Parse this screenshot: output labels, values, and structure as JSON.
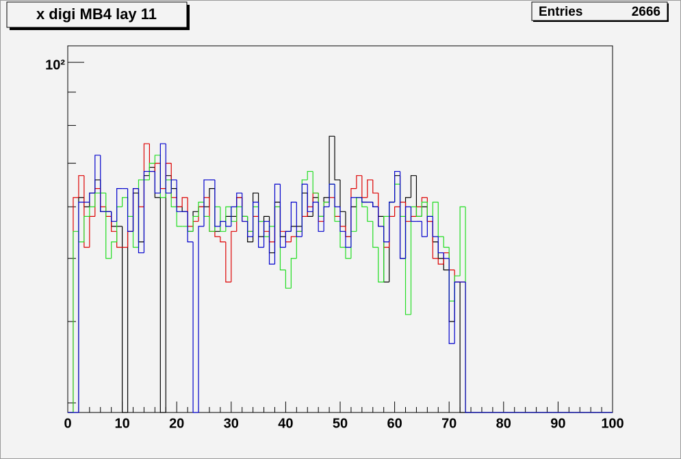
{
  "chart_data": {
    "type": "histogram",
    "title": "x digi MB4 lay 11",
    "stats": {
      "label": "Entries",
      "value": "2666"
    },
    "bins": [
      0,
      1,
      2,
      3,
      4,
      5,
      6,
      7,
      8,
      9,
      10,
      11,
      12,
      13,
      14,
      15,
      16,
      17,
      18,
      19,
      20,
      21,
      22,
      23,
      24,
      25,
      26,
      27,
      28,
      29,
      30,
      31,
      32,
      33,
      34,
      35,
      36,
      37,
      38,
      39,
      40,
      41,
      42,
      43,
      44,
      45,
      46,
      47,
      48,
      49,
      50,
      51,
      52,
      53,
      54,
      55,
      56,
      57,
      58,
      59,
      60,
      61,
      62,
      63,
      64,
      65,
      66,
      67,
      68,
      69,
      70,
      71,
      72,
      73,
      74,
      75,
      76,
      77,
      78,
      79,
      80,
      81,
      82,
      83,
      84,
      85,
      86,
      87,
      88,
      89,
      90,
      91,
      92,
      93,
      94,
      95,
      96,
      97,
      98,
      99,
      100
    ],
    "series": [
      {
        "color": "#000000",
        "values": [
          0,
          0,
          62,
          60,
          63,
          66,
          59,
          59,
          56,
          56,
          0,
          55,
          63,
          53,
          67,
          69,
          62,
          0,
          67,
          64,
          60,
          59,
          55,
          59,
          60,
          60,
          64,
          55,
          57,
          58,
          58,
          62,
          58,
          53,
          63,
          54,
          58,
          51,
          61,
          54,
          55,
          56,
          56,
          63,
          58,
          62,
          58,
          62,
          77,
          66,
          59,
          54,
          60,
          62,
          61,
          61,
          60,
          58,
          46,
          61,
          67,
          50,
          62,
          67,
          58,
          60,
          57,
          53,
          50,
          48,
          40,
          46,
          0,
          0,
          0,
          0,
          0,
          0,
          0,
          0,
          0,
          0,
          0,
          0,
          0,
          0,
          0,
          0,
          0,
          0,
          0,
          0,
          0,
          0,
          0,
          0,
          0,
          0,
          0,
          0
        ]
      },
      {
        "color": "#dd0000",
        "values": [
          0,
          62,
          67,
          52,
          58,
          64,
          60,
          58,
          55,
          52,
          52,
          55,
          64,
          60,
          75,
          68,
          70,
          64,
          70,
          62,
          60,
          62,
          56,
          57,
          60,
          62,
          55,
          54,
          53,
          46,
          55,
          62,
          57,
          55,
          58,
          57,
          55,
          53,
          60,
          55,
          53,
          54,
          55,
          58,
          60,
          63,
          57,
          61,
          62,
          58,
          56,
          54,
          64,
          67,
          62,
          66,
          63,
          56,
          52,
          58,
          60,
          61,
          57,
          58,
          60,
          62,
          57,
          50,
          49,
          51,
          48,
          46,
          46,
          0,
          0,
          0,
          0,
          0,
          0,
          0,
          0,
          0,
          0,
          0,
          0,
          0,
          0,
          0,
          0,
          0,
          0,
          0,
          0,
          0,
          0,
          0,
          0,
          0,
          0,
          0
        ]
      },
      {
        "color": "#22dd22",
        "values": [
          0,
          55,
          53,
          58,
          60,
          63,
          63,
          50,
          53,
          60,
          62,
          58,
          52,
          66,
          66,
          70,
          72,
          62,
          66,
          60,
          56,
          56,
          55,
          58,
          61,
          58,
          55,
          60,
          55,
          60,
          57,
          60,
          58,
          55,
          60,
          57,
          54,
          56,
          60,
          48,
          45,
          50,
          55,
          66,
          68,
          63,
          58,
          61,
          65,
          57,
          52,
          50,
          55,
          62,
          60,
          57,
          52,
          46,
          58,
          61,
          65,
          58,
          41,
          60,
          58,
          61,
          58,
          61,
          54,
          52,
          43,
          47,
          60,
          0,
          0,
          0,
          0,
          0,
          0,
          0,
          0,
          0,
          0,
          0,
          0,
          0,
          0,
          0,
          0,
          0,
          0,
          0,
          0,
          0,
          0,
          0,
          0,
          0,
          0,
          0
        ]
      },
      {
        "color": "#0000cc",
        "values": [
          0,
          0,
          61,
          61,
          63,
          72,
          59,
          59,
          57,
          64,
          64,
          55,
          64,
          51,
          68,
          68,
          63,
          75,
          63,
          66,
          59,
          59,
          53,
          0,
          56,
          66,
          66,
          56,
          57,
          56,
          60,
          63,
          57,
          54,
          61,
          52,
          57,
          49,
          65,
          52,
          55,
          61,
          54,
          65,
          59,
          61,
          55,
          60,
          65,
          60,
          55,
          52,
          62,
          62,
          61,
          61,
          60,
          56,
          53,
          61,
          68,
          50,
          60,
          57,
          57,
          54,
          58,
          54,
          51,
          50,
          37,
          46,
          46,
          0,
          0,
          0,
          0,
          0,
          0,
          0,
          0,
          0,
          0,
          0,
          0,
          0,
          0,
          0,
          0,
          0,
          0,
          0,
          0,
          0,
          0,
          0,
          0,
          0,
          0,
          0
        ]
      }
    ],
    "xlim": [
      0,
      100
    ],
    "xticks": [
      0,
      10,
      20,
      30,
      40,
      50,
      60,
      70,
      80,
      90,
      100
    ],
    "ylim": [
      29,
      106
    ],
    "log_y": true,
    "yticks": [
      {
        "value": 100,
        "label": "10²"
      }
    ],
    "yminor": [
      30,
      40,
      50,
      60,
      70,
      80,
      90
    ]
  }
}
